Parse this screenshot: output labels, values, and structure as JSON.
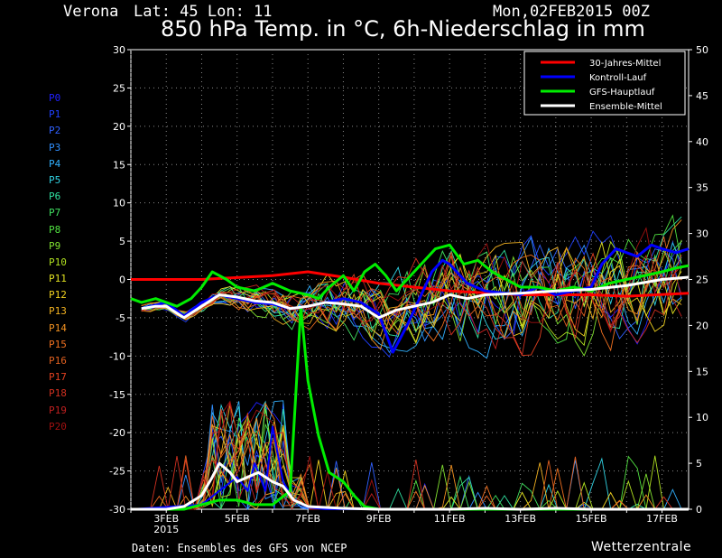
{
  "header": {
    "location": "Verona",
    "coords": "Lat: 45 Lon: 11",
    "run": "Mon,02FEB2015 00Z",
    "title": "850 hPa Temp. in °C, 6h-Niederschlag in mm"
  },
  "footer": {
    "source": "Daten: Ensembles des GFS von NCEP",
    "brand": "Wetterzentrale"
  },
  "members": [
    {
      "label": "P0",
      "color": "#2020ff"
    },
    {
      "label": "P1",
      "color": "#2040ff"
    },
    {
      "label": "P2",
      "color": "#3060ff"
    },
    {
      "label": "P3",
      "color": "#3090ff"
    },
    {
      "label": "P4",
      "color": "#30b0ff"
    },
    {
      "label": "P5",
      "color": "#30d0e0"
    },
    {
      "label": "P6",
      "color": "#30e0a0"
    },
    {
      "label": "P7",
      "color": "#40e060"
    },
    {
      "label": "P8",
      "color": "#50e040"
    },
    {
      "label": "P9",
      "color": "#80e030"
    },
    {
      "label": "P10",
      "color": "#b0e020"
    },
    {
      "label": "P11",
      "color": "#e0e020"
    },
    {
      "label": "P12",
      "color": "#f0d020"
    },
    {
      "label": "P13",
      "color": "#f0b020"
    },
    {
      "label": "P14",
      "color": "#f09020"
    },
    {
      "label": "P15",
      "color": "#f07020"
    },
    {
      "label": "P16",
      "color": "#e06020"
    },
    {
      "label": "P17",
      "color": "#e04020"
    },
    {
      "label": "P18",
      "color": "#d03020"
    },
    {
      "label": "P19",
      "color": "#c02020"
    },
    {
      "label": "P20",
      "color": "#a01010"
    }
  ],
  "chart_data": {
    "type": "line",
    "x_labels": [
      {
        "day": 3,
        "text": "3FEB",
        "sub": "2015"
      },
      {
        "day": 5,
        "text": "5FEB"
      },
      {
        "day": 7,
        "text": "7FEB"
      },
      {
        "day": 9,
        "text": "9FEB"
      },
      {
        "day": 11,
        "text": "11FEB"
      },
      {
        "day": 13,
        "text": "13FEB"
      },
      {
        "day": 15,
        "text": "15FEB"
      },
      {
        "day": 17,
        "text": "17FEB"
      }
    ],
    "xlim_days": [
      2.0,
      17.75
    ],
    "y_left": {
      "min": -30,
      "max": 30,
      "step": 5,
      "unit": "°C"
    },
    "y_right": {
      "min": 0,
      "max": 50,
      "step": 5,
      "unit": "mm"
    },
    "grid": true,
    "legend": {
      "placement": "top-right",
      "entries": [
        {
          "label": "30-Jahres-Mittel",
          "color": "#ff0000"
        },
        {
          "label": "Kontroll-Lauf",
          "color": "#0000ff"
        },
        {
          "label": "GFS-Hauptlauf",
          "color": "#00ee00"
        },
        {
          "label": "Ensemble-Mittel",
          "color": "#ffffff"
        }
      ]
    },
    "temperature_series": [
      {
        "key": "mean30",
        "color": "#ff0000",
        "width": 3,
        "points": [
          [
            2,
            0
          ],
          [
            4,
            0
          ],
          [
            6,
            0.5
          ],
          [
            7,
            1
          ],
          [
            8,
            0.3
          ],
          [
            9,
            -0.5
          ],
          [
            11,
            -1.5
          ],
          [
            13,
            -2
          ],
          [
            15,
            -2
          ],
          [
            16,
            -2.2
          ],
          [
            17.75,
            -1.8
          ]
        ]
      },
      {
        "key": "control",
        "color": "#0000ff",
        "width": 3,
        "points": [
          [
            2.3,
            -3.8
          ],
          [
            3,
            -3
          ],
          [
            3.5,
            -4.8
          ],
          [
            4,
            -3
          ],
          [
            4.5,
            -2
          ],
          [
            5,
            -2.5
          ],
          [
            5.5,
            -3
          ],
          [
            6,
            -3.2
          ],
          [
            6.5,
            -3.8
          ],
          [
            7,
            -3.5
          ],
          [
            7.5,
            -3
          ],
          [
            8,
            -2.5
          ],
          [
            8.5,
            -3
          ],
          [
            9,
            -4.5
          ],
          [
            9.4,
            -9.5
          ],
          [
            9.8,
            -6
          ],
          [
            10.2,
            -2
          ],
          [
            10.5,
            1
          ],
          [
            10.8,
            2.5
          ],
          [
            11,
            2
          ],
          [
            11.5,
            -0.5
          ],
          [
            12,
            -1.5
          ],
          [
            13,
            -2
          ],
          [
            13.5,
            -1
          ],
          [
            14,
            -2
          ],
          [
            14.5,
            -1.5
          ],
          [
            15,
            -1
          ],
          [
            15.3,
            2
          ],
          [
            15.7,
            4
          ],
          [
            16,
            3.5
          ],
          [
            16.3,
            3
          ],
          [
            16.7,
            4.5
          ],
          [
            17,
            4
          ],
          [
            17.4,
            3.5
          ],
          [
            17.75,
            4
          ]
        ]
      },
      {
        "key": "gfs",
        "color": "#00ee00",
        "width": 3,
        "points": [
          [
            2,
            -2.5
          ],
          [
            2.3,
            -3
          ],
          [
            2.7,
            -2.5
          ],
          [
            3,
            -3
          ],
          [
            3.3,
            -3.5
          ],
          [
            3.7,
            -2.5
          ],
          [
            4,
            -1
          ],
          [
            4.3,
            1
          ],
          [
            4.7,
            0
          ],
          [
            5,
            -1
          ],
          [
            5.5,
            -1.5
          ],
          [
            6,
            -0.5
          ],
          [
            6.5,
            -1.5
          ],
          [
            7,
            -2
          ],
          [
            7.3,
            -2.5
          ],
          [
            7.6,
            -1
          ],
          [
            8,
            0.5
          ],
          [
            8.3,
            -1.5
          ],
          [
            8.6,
            1
          ],
          [
            8.9,
            2
          ],
          [
            9.2,
            0.5
          ],
          [
            9.5,
            -1.5
          ],
          [
            10,
            1
          ],
          [
            10.3,
            2.5
          ],
          [
            10.6,
            4
          ],
          [
            11,
            4.5
          ],
          [
            11.4,
            2
          ],
          [
            11.8,
            2.5
          ],
          [
            12.2,
            1
          ],
          [
            12.6,
            0
          ],
          [
            13,
            -1
          ],
          [
            13.5,
            -1
          ],
          [
            14,
            -1.5
          ],
          [
            14.5,
            -1
          ],
          [
            15,
            -1.5
          ],
          [
            15.5,
            -0.5
          ],
          [
            16,
            0
          ],
          [
            16.5,
            0.5
          ],
          [
            17,
            1
          ],
          [
            17.4,
            1.5
          ],
          [
            17.75,
            1.8
          ]
        ]
      },
      {
        "key": "ensemble_mean",
        "color": "#ffffff",
        "width": 3,
        "points": [
          [
            2.3,
            -3.8
          ],
          [
            2.7,
            -3.5
          ],
          [
            3,
            -3.5
          ],
          [
            3.5,
            -5
          ],
          [
            4,
            -3.5
          ],
          [
            4.5,
            -2
          ],
          [
            5,
            -2.3
          ],
          [
            5.5,
            -2.8
          ],
          [
            6,
            -3
          ],
          [
            6.5,
            -3.8
          ],
          [
            7,
            -3.5
          ],
          [
            7.5,
            -3
          ],
          [
            8,
            -3.2
          ],
          [
            8.5,
            -3.5
          ],
          [
            9,
            -5
          ],
          [
            9.5,
            -4
          ],
          [
            10,
            -3.5
          ],
          [
            10.5,
            -3
          ],
          [
            11,
            -2
          ],
          [
            11.5,
            -2.5
          ],
          [
            12,
            -2
          ],
          [
            13,
            -1.8
          ],
          [
            14,
            -1.5
          ],
          [
            15,
            -1.3
          ],
          [
            16,
            -0.8
          ],
          [
            17,
            0
          ],
          [
            17.75,
            0.3
          ]
        ]
      }
    ],
    "precip_series": [
      {
        "key": "control",
        "color": "#0000ff",
        "width": 2,
        "points": [
          [
            2,
            0
          ],
          [
            4,
            0.5
          ],
          [
            4.5,
            2
          ],
          [
            5,
            3.5
          ],
          [
            5.3,
            2
          ],
          [
            5.5,
            5
          ],
          [
            5.8,
            2
          ],
          [
            6,
            9
          ],
          [
            6.3,
            3
          ],
          [
            6.6,
            1
          ],
          [
            7,
            0.2
          ],
          [
            7.5,
            0
          ],
          [
            17.75,
            0
          ]
        ]
      },
      {
        "key": "gfs",
        "color": "#00ee00",
        "width": 3,
        "points": [
          [
            2,
            0
          ],
          [
            3.5,
            0
          ],
          [
            4,
            0.5
          ],
          [
            4.5,
            1
          ],
          [
            5,
            1
          ],
          [
            5.5,
            0.5
          ],
          [
            6,
            0.5
          ],
          [
            6.5,
            2
          ],
          [
            6.8,
            22
          ],
          [
            7,
            14
          ],
          [
            7.3,
            8
          ],
          [
            7.6,
            4
          ],
          [
            8,
            3
          ],
          [
            8.3,
            1.5
          ],
          [
            8.6,
            0.3
          ],
          [
            9,
            0
          ],
          [
            17.75,
            0
          ]
        ]
      },
      {
        "key": "ensemble_mean",
        "color": "#ffffff",
        "width": 3,
        "points": [
          [
            2,
            0
          ],
          [
            3,
            0
          ],
          [
            3.5,
            0.3
          ],
          [
            4,
            1.5
          ],
          [
            4.3,
            3.5
          ],
          [
            4.5,
            5
          ],
          [
            4.8,
            4
          ],
          [
            5,
            3
          ],
          [
            5.3,
            3.5
          ],
          [
            5.6,
            4
          ],
          [
            6,
            3
          ],
          [
            6.3,
            2.5
          ],
          [
            6.6,
            1
          ],
          [
            7,
            0.3
          ],
          [
            8,
            0.1
          ],
          [
            9,
            0
          ],
          [
            10,
            0
          ],
          [
            11,
            0
          ],
          [
            12,
            0.1
          ],
          [
            13,
            0
          ],
          [
            14,
            0.1
          ],
          [
            15,
            0
          ],
          [
            16,
            0
          ],
          [
            17,
            0
          ],
          [
            17.75,
            0
          ]
        ]
      }
    ]
  }
}
